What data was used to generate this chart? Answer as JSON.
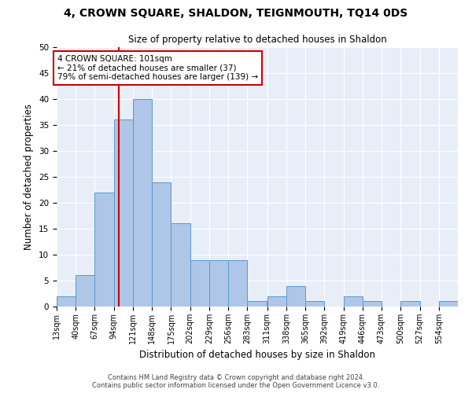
{
  "title": "4, CROWN SQUARE, SHALDON, TEIGNMOUTH, TQ14 0DS",
  "subtitle": "Size of property relative to detached houses in Shaldon",
  "xlabel": "Distribution of detached houses by size in Shaldon",
  "ylabel": "Number of detached properties",
  "bin_labels": [
    "13sqm",
    "40sqm",
    "67sqm",
    "94sqm",
    "121sqm",
    "148sqm",
    "175sqm",
    "202sqm",
    "229sqm",
    "256sqm",
    "283sqm",
    "311sqm",
    "338sqm",
    "365sqm",
    "392sqm",
    "419sqm",
    "446sqm",
    "473sqm",
    "500sqm",
    "527sqm",
    "554sqm"
  ],
  "bin_edges": [
    13,
    40,
    67,
    94,
    121,
    148,
    175,
    202,
    229,
    256,
    283,
    311,
    338,
    365,
    392,
    419,
    446,
    473,
    500,
    527,
    554
  ],
  "bar_heights": [
    2,
    6,
    22,
    36,
    40,
    24,
    16,
    9,
    9,
    9,
    1,
    2,
    4,
    1,
    0,
    2,
    1,
    0,
    1,
    0,
    1
  ],
  "bar_color": "#aec6e8",
  "bar_edge_color": "#5a9ac8",
  "vline_x": 101,
  "vline_color": "#cc0000",
  "annotation_line1": "4 CROWN SQUARE: 101sqm",
  "annotation_line2": "← 21% of detached houses are smaller (37)",
  "annotation_line3": "79% of semi-detached houses are larger (139) →",
  "annotation_box_color": "#ffffff",
  "annotation_box_edge": "#cc0000",
  "ylim": [
    0,
    50
  ],
  "yticks": [
    0,
    5,
    10,
    15,
    20,
    25,
    30,
    35,
    40,
    45,
    50
  ],
  "bg_color": "#e8eef8",
  "footer1": "Contains HM Land Registry data © Crown copyright and database right 2024.",
  "footer2": "Contains public sector information licensed under the Open Government Licence v3.0."
}
